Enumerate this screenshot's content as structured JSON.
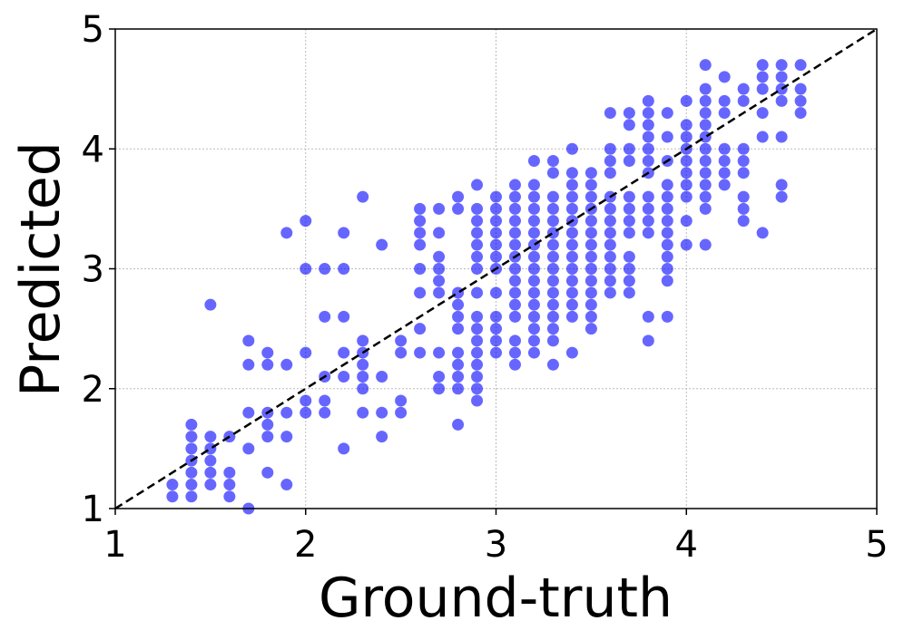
{
  "chart_data": {
    "type": "scatter",
    "xlabel": "Ground-truth",
    "ylabel": "Predicted",
    "color": "#0000ff",
    "xlim": [
      1,
      5
    ],
    "ylim": [
      1,
      5
    ],
    "xticks": [
      1,
      2,
      3,
      4,
      5
    ],
    "yticks": [
      1,
      2,
      3,
      4,
      5
    ],
    "grid": true,
    "x": [
      1.3,
      1.3,
      1.4,
      1.4,
      1.4,
      1.4,
      1.4,
      1.4,
      1.4,
      1.5,
      1.5,
      1.5,
      1.5,
      1.5,
      1.5,
      1.6,
      1.6,
      1.6,
      1.6,
      1.7,
      1.7,
      1.7,
      1.7,
      1.7,
      1.8,
      1.8,
      1.8,
      1.8,
      1.8,
      1.8,
      1.9,
      1.9,
      1.9,
      1.9,
      1.9,
      2.0,
      2.0,
      2.0,
      2.0,
      2.0,
      2.1,
      2.1,
      2.1,
      2.1,
      2.1,
      2.2,
      2.2,
      2.2,
      2.2,
      2.2,
      2.2,
      2.3,
      2.3,
      2.3,
      2.3,
      2.3,
      2.3,
      2.3,
      2.4,
      2.4,
      2.4,
      2.4,
      2.5,
      2.5,
      2.5,
      2.5,
      2.6,
      2.6,
      2.6,
      2.6,
      2.6,
      2.6,
      2.6,
      2.6,
      2.7,
      2.7,
      2.7,
      2.7,
      2.7,
      2.7,
      2.7,
      2.7,
      2.7,
      2.8,
      2.8,
      2.8,
      2.8,
      2.8,
      2.8,
      2.8,
      2.8,
      2.8,
      2.8,
      2.8,
      2.9,
      2.9,
      2.9,
      2.9,
      2.9,
      2.9,
      2.9,
      2.9,
      2.9,
      2.9,
      2.9,
      2.9,
      2.9,
      2.9,
      2.9,
      2.9,
      3.0,
      3.0,
      3.0,
      3.0,
      3.0,
      3.0,
      3.0,
      3.0,
      3.0,
      3.0,
      3.0,
      3.0,
      3.1,
      3.1,
      3.1,
      3.1,
      3.1,
      3.1,
      3.1,
      3.1,
      3.1,
      3.1,
      3.1,
      3.1,
      3.1,
      3.1,
      3.1,
      3.2,
      3.2,
      3.2,
      3.2,
      3.2,
      3.2,
      3.2,
      3.2,
      3.2,
      3.2,
      3.2,
      3.2,
      3.2,
      3.2,
      3.2,
      3.2,
      3.3,
      3.3,
      3.3,
      3.3,
      3.3,
      3.3,
      3.3,
      3.3,
      3.3,
      3.3,
      3.3,
      3.3,
      3.3,
      3.3,
      3.3,
      3.3,
      3.4,
      3.4,
      3.4,
      3.4,
      3.4,
      3.4,
      3.4,
      3.4,
      3.4,
      3.4,
      3.4,
      3.4,
      3.4,
      3.4,
      3.4,
      3.5,
      3.5,
      3.5,
      3.5,
      3.5,
      3.5,
      3.5,
      3.5,
      3.5,
      3.5,
      3.5,
      3.5,
      3.5,
      3.5,
      3.6,
      3.6,
      3.6,
      3.6,
      3.6,
      3.6,
      3.6,
      3.6,
      3.6,
      3.6,
      3.6,
      3.6,
      3.6,
      3.7,
      3.7,
      3.7,
      3.7,
      3.7,
      3.7,
      3.7,
      3.7,
      3.7,
      3.7,
      3.7,
      3.7,
      3.8,
      3.8,
      3.8,
      3.8,
      3.8,
      3.8,
      3.8,
      3.8,
      3.8,
      3.8,
      3.8,
      3.8,
      3.8,
      3.9,
      3.9,
      3.9,
      3.9,
      3.9,
      3.9,
      3.9,
      3.9,
      3.9,
      3.9,
      3.9,
      3.9,
      3.9,
      4.0,
      4.0,
      4.0,
      4.0,
      4.0,
      4.0,
      4.0,
      4.0,
      4.0,
      4.0,
      4.1,
      4.1,
      4.1,
      4.1,
      4.1,
      4.1,
      4.1,
      4.1,
      4.1,
      4.1,
      4.1,
      4.1,
      4.1,
      4.2,
      4.2,
      4.2,
      4.2,
      4.2,
      4.2,
      4.2,
      4.3,
      4.3,
      4.3,
      4.3,
      4.3,
      4.3,
      4.3,
      4.3,
      4.4,
      4.4,
      4.4,
      4.4,
      4.4,
      4.4,
      4.5,
      4.5,
      4.5,
      4.5,
      4.5,
      4.5,
      4.5,
      4.6,
      4.6,
      4.6,
      4.6
    ],
    "y": [
      1.1,
      1.2,
      1.1,
      1.2,
      1.3,
      1.4,
      1.5,
      1.6,
      1.7,
      1.2,
      1.3,
      1.4,
      1.5,
      1.6,
      2.7,
      1.1,
      1.2,
      1.3,
      1.6,
      1.0,
      1.5,
      1.8,
      2.2,
      2.4,
      1.3,
      1.6,
      1.7,
      1.8,
      2.2,
      2.3,
      1.2,
      1.6,
      1.8,
      2.2,
      3.3,
      1.8,
      1.9,
      2.3,
      3.0,
      3.4,
      1.8,
      1.9,
      2.1,
      2.6,
      3.0,
      1.5,
      2.1,
      2.3,
      2.6,
      3.0,
      3.3,
      1.8,
      2.0,
      2.1,
      2.2,
      2.3,
      2.4,
      3.6,
      1.6,
      1.8,
      2.1,
      3.2,
      1.8,
      1.9,
      2.3,
      2.4,
      2.3,
      2.5,
      2.8,
      3.0,
      3.2,
      3.3,
      3.4,
      3.5,
      2.0,
      2.1,
      2.3,
      2.8,
      2.9,
      3.0,
      3.1,
      3.3,
      3.5,
      1.7,
      2.0,
      2.1,
      2.2,
      2.3,
      2.5,
      2.6,
      2.7,
      2.8,
      3.5,
      3.6,
      1.9,
      2.0,
      2.1,
      2.2,
      2.3,
      2.4,
      2.5,
      2.6,
      2.8,
      3.0,
      3.1,
      3.2,
      3.3,
      3.4,
      3.5,
      3.7,
      2.3,
      2.4,
      2.5,
      2.6,
      2.8,
      3.0,
      3.1,
      3.2,
      3.3,
      3.4,
      3.5,
      3.6,
      2.2,
      2.3,
      2.4,
      2.6,
      2.7,
      2.8,
      2.9,
      3.0,
      3.1,
      3.2,
      3.3,
      3.4,
      3.5,
      3.6,
      3.7,
      2.3,
      2.4,
      2.5,
      2.6,
      2.7,
      2.8,
      2.9,
      3.0,
      3.1,
      3.2,
      3.3,
      3.4,
      3.5,
      3.6,
      3.7,
      3.9,
      2.2,
      2.4,
      2.5,
      2.6,
      2.7,
      2.8,
      2.9,
      3.0,
      3.1,
      3.2,
      3.3,
      3.4,
      3.5,
      3.6,
      3.8,
      3.9,
      2.3,
      2.6,
      2.7,
      2.8,
      2.9,
      3.0,
      3.1,
      3.2,
      3.3,
      3.4,
      3.5,
      3.6,
      3.7,
      3.8,
      4.0,
      2.5,
      2.6,
      2.7,
      2.8,
      2.9,
      3.0,
      3.1,
      3.2,
      3.3,
      3.4,
      3.5,
      3.6,
      3.7,
      3.8,
      2.8,
      2.9,
      3.0,
      3.1,
      3.2,
      3.3,
      3.4,
      3.5,
      3.6,
      3.8,
      3.9,
      4.0,
      4.3,
      2.8,
      2.9,
      3.0,
      3.1,
      3.3,
      3.4,
      3.5,
      3.6,
      3.9,
      4.0,
      4.2,
      4.3,
      2.4,
      2.6,
      3.3,
      3.4,
      3.5,
      3.6,
      3.8,
      3.9,
      4.0,
      4.1,
      4.2,
      4.3,
      4.4,
      2.6,
      2.9,
      3.0,
      3.1,
      3.2,
      3.3,
      3.4,
      3.5,
      3.6,
      3.7,
      3.9,
      4.1,
      4.3,
      3.2,
      3.4,
      3.6,
      3.7,
      3.8,
      3.9,
      4.0,
      4.1,
      4.2,
      4.4,
      3.2,
      3.5,
      3.6,
      3.7,
      3.8,
      3.9,
      4.0,
      4.1,
      4.2,
      4.3,
      4.4,
      4.5,
      4.7,
      3.7,
      3.8,
      3.9,
      4.0,
      4.3,
      4.4,
      4.6,
      3.4,
      3.5,
      3.6,
      3.8,
      3.9,
      4.0,
      4.4,
      4.5,
      3.3,
      4.1,
      4.3,
      4.5,
      4.6,
      4.7,
      3.6,
      3.7,
      4.1,
      4.4,
      4.5,
      4.6,
      4.7,
      4.3,
      4.4,
      4.5,
      4.7
    ]
  }
}
